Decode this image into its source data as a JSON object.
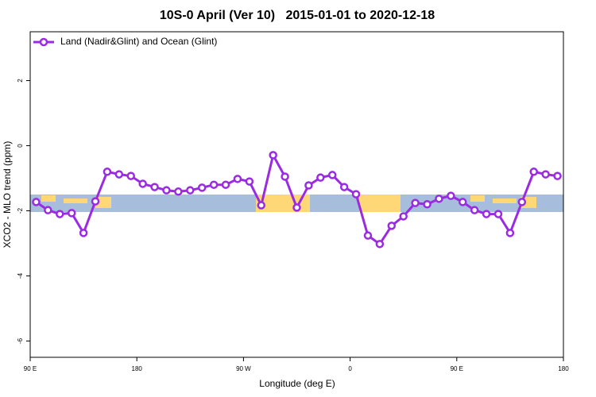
{
  "chart_data": {
    "type": "line",
    "title": "10S-0 April (Ver 10)   2015-01-01 to 2020-12-18",
    "x_label": "Longitude (deg E)",
    "y_label": "XCO2 - MLO trend (ppm)",
    "x": [
      95,
      105,
      115,
      125,
      135,
      145,
      155,
      165,
      175,
      185,
      195,
      205,
      215,
      225,
      235,
      245,
      255,
      265,
      275,
      285,
      295,
      305,
      315,
      325,
      335,
      345,
      355,
      365,
      375,
      385,
      395,
      405,
      415,
      425,
      435,
      445,
      455,
      465,
      475,
      485,
      495,
      505,
      515,
      525,
      535
    ],
    "series": [
      {
        "name": "Land (Nadir&Glint) and Ocean (Glint)",
        "color": "#9a2be2",
        "values": [
          -1.73,
          -1.98,
          -2.1,
          -2.07,
          -2.68,
          -1.71,
          -0.8,
          -0.88,
          -0.93,
          -1.17,
          -1.27,
          -1.37,
          -1.41,
          -1.37,
          -1.29,
          -1.2,
          -1.2,
          -1.02,
          -1.1,
          -1.83,
          -0.29,
          -0.95,
          -1.9,
          -1.22,
          -0.98,
          -0.9,
          -1.27,
          -1.49,
          -2.76,
          -3.02,
          -2.46,
          -2.17,
          -1.76,
          -1.8,
          -1.63,
          -1.54,
          -1.73,
          -1.98,
          -2.1,
          -2.1,
          -2.68,
          -1.73,
          -0.8,
          -0.88,
          -0.93
        ]
      }
    ],
    "xlim": [
      90,
      540
    ],
    "xticks": [
      {
        "value": 90,
        "label": "90 E"
      },
      180,
      {
        "value": 270,
        "label": "90 W"
      },
      {
        "value": 360,
        "label": "0"
      },
      {
        "value": 450,
        "label": "90 E"
      },
      {
        "value": 540,
        "label": "180"
      }
    ],
    "ylim": [
      -6.5,
      3.5
    ],
    "yticks": [
      -6,
      -4,
      -2,
      0,
      2
    ],
    "legend": "top-left"
  }
}
